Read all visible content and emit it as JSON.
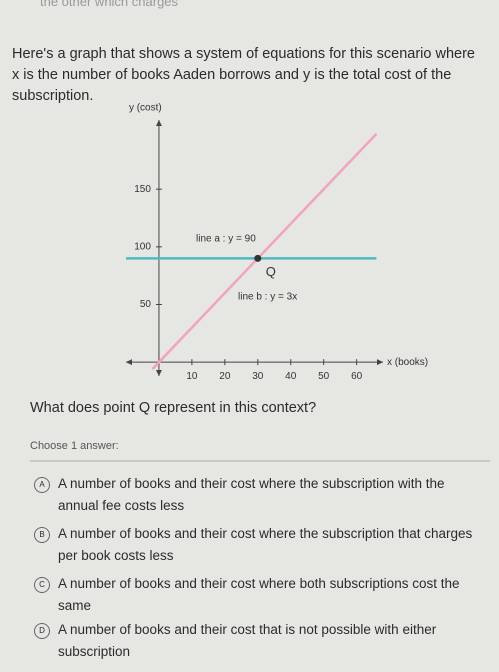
{
  "top_fragment": "the other which charges",
  "intro": "Here's a graph that shows a system of equations for this scenario where x is the number of books Aaden borrows and y is the total cost of the subscription.",
  "chart_data": {
    "type": "line",
    "y_label": "y (cost)",
    "x_label": "x (books)",
    "x": [
      -10,
      -2,
      66
    ],
    "series": [
      {
        "name": "line a : y = 90",
        "color": "#4fb9c2",
        "values": [
          90,
          90,
          90
        ]
      },
      {
        "name": "line b : y = 3x",
        "color": "#f2a3bf",
        "values": [
          null,
          -6,
          198
        ]
      }
    ],
    "points": [
      {
        "label": "Q",
        "x": 30,
        "y": 90
      }
    ],
    "xlim": [
      -10,
      68
    ],
    "ylim": [
      -12,
      210
    ],
    "xticks": [
      10,
      20,
      30,
      40,
      50,
      60
    ],
    "yticks": [
      50,
      100,
      150
    ]
  },
  "question": "What does point Q represent in this context?",
  "prompt": "Choose 1 answer:",
  "choices": [
    {
      "letter": "A",
      "text": "A number of books and their cost where the subscription with the annual fee costs less"
    },
    {
      "letter": "B",
      "text": "A number of books and their cost where the subscription that charges per book costs less"
    },
    {
      "letter": "C",
      "text": "A number of books and their cost where both subscriptions cost the same"
    },
    {
      "letter": "D",
      "text": "A number of books and their cost that is not possible with either subscription"
    }
  ]
}
